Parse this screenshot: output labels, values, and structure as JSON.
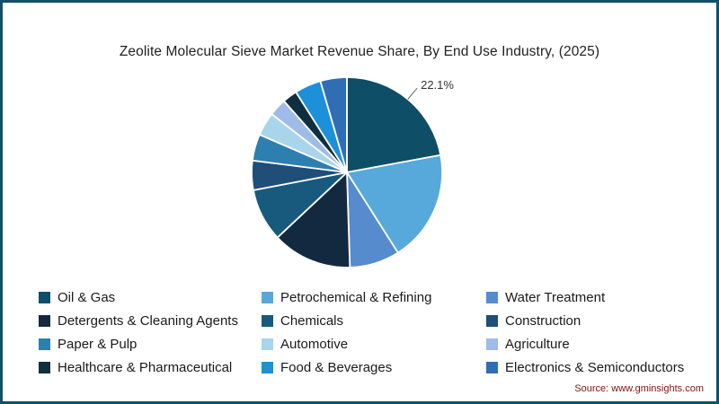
{
  "title": "Zeolite Molecular Sieve Market Revenue Share, By End Use Industry, (2025)",
  "source": {
    "label": "Source:",
    "url": "www.gminsights.com"
  },
  "colors": {
    "frame_border": "#11506b",
    "source_text": "#7f1212",
    "slice_divider": "#ffffff"
  },
  "chart_data": {
    "type": "pie",
    "title": "Zeolite Molecular Sieve Market Revenue Share, By End Use Industry, (2025)",
    "legend_position": "bottom",
    "annotation": {
      "label": "22.1%",
      "slice": "Oil & Gas"
    },
    "series": [
      {
        "name": "Oil & Gas",
        "value": 22.1,
        "color": "#0e4e66"
      },
      {
        "name": "Petrochemical & Refining",
        "value": 18.9,
        "color": "#56a9da"
      },
      {
        "name": "Water Treatment",
        "value": 8.5,
        "color": "#568bcd"
      },
      {
        "name": "Detergents & Cleaning Agents",
        "value": 13.5,
        "color": "#13293f"
      },
      {
        "name": "Chemicals",
        "value": 9.0,
        "color": "#175a7e"
      },
      {
        "name": "Construction",
        "value": 5.0,
        "color": "#1f4e79"
      },
      {
        "name": "Paper & Pulp",
        "value": 4.5,
        "color": "#2d7fb0"
      },
      {
        "name": "Automotive",
        "value": 4.0,
        "color": "#a9d5ec"
      },
      {
        "name": "Agriculture",
        "value": 3.0,
        "color": "#9fbbe8"
      },
      {
        "name": "Healthcare & Pharmaceutical",
        "value": 2.5,
        "color": "#0d2f3f"
      },
      {
        "name": "Food & Beverages",
        "value": 4.5,
        "color": "#1c90d9"
      },
      {
        "name": "Electronics & Semiconductors",
        "value": 4.5,
        "color": "#2f6eb5"
      }
    ]
  }
}
